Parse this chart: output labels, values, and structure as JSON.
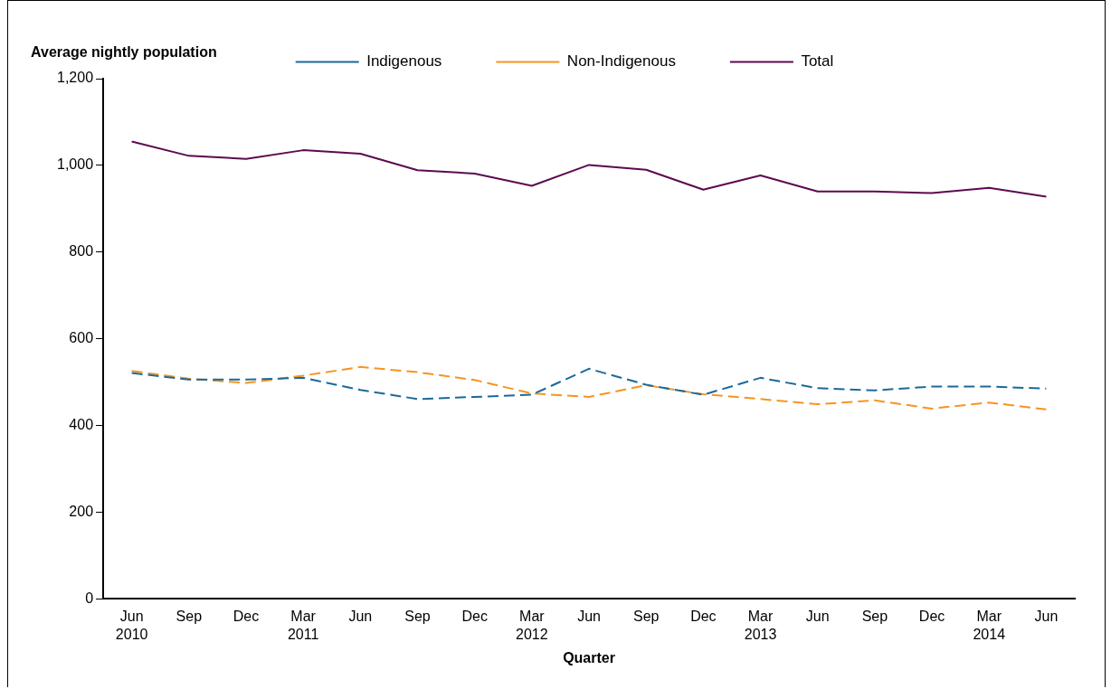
{
  "chart_data": {
    "type": "line",
    "xlabel": "Quarter",
    "ylabel": "Average nightly population",
    "categories": [
      "Jun\n2010",
      "Sep",
      "Dec",
      "Mar\n2011",
      "Jun",
      "Sep",
      "Dec",
      "Mar\n2012",
      "Jun",
      "Sep",
      "Dec",
      "Mar\n2013",
      "Jun",
      "Sep",
      "Dec",
      "Mar\n2014",
      "Jun"
    ],
    "series": [
      {
        "name": "Indigenous",
        "color": "#1a6a9a",
        "line_style": "dashed",
        "values": [
          521,
          506,
          506,
          510,
          482,
          461,
          466,
          471,
          531,
          494,
          471,
          510,
          486,
          481,
          490,
          490,
          485
        ]
      },
      {
        "name": "Non-Indigenous",
        "color": "#f79420",
        "line_style": "dashed",
        "values": [
          526,
          508,
          498,
          515,
          535,
          523,
          505,
          474,
          466,
          493,
          472,
          461,
          449,
          458,
          439,
          453,
          437
        ]
      },
      {
        "name": "Total",
        "color": "#5c0a4f",
        "line_style": "solid",
        "values": [
          1055,
          1022,
          1015,
          1035,
          1027,
          989,
          981,
          953,
          1001,
          990,
          944,
          977,
          940,
          940,
          936,
          948,
          928
        ]
      }
    ],
    "ylim": [
      0,
      1200
    ],
    "yticks": [
      {
        "value": 0,
        "label": "0"
      },
      {
        "value": 200,
        "label": "200"
      },
      {
        "value": 400,
        "label": "400"
      },
      {
        "value": 600,
        "label": "600"
      },
      {
        "value": 800,
        "label": "800"
      },
      {
        "value": 1000,
        "label": "1,000"
      },
      {
        "value": 1200,
        "label": "1,200"
      }
    ],
    "grid": false,
    "legend": "top",
    "marker": "none"
  }
}
